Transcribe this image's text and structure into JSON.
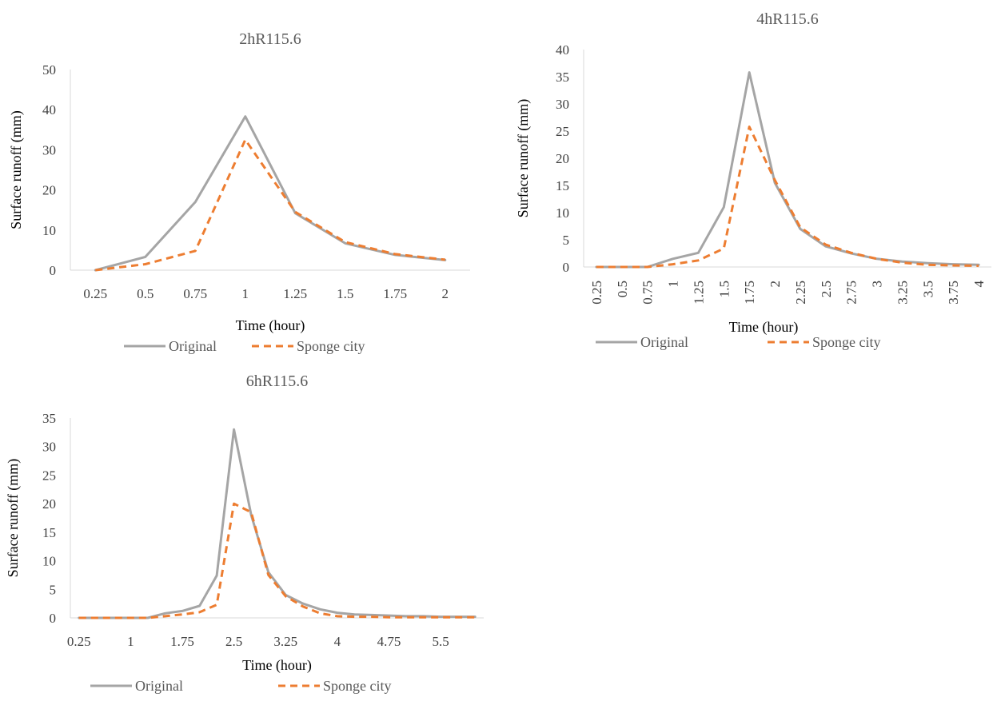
{
  "colors": {
    "original": "#A5A5A5",
    "sponge": "#ED7D31",
    "axis": "#D9D9D9",
    "text": "#595959"
  },
  "chart_data": [
    {
      "type": "line",
      "title": "2hR115.6",
      "xlabel": "Time (hour)",
      "ylabel": "Surface runoff (mm)",
      "categories": [
        "0.25",
        "0.5",
        "0.75",
        "1",
        "1.25",
        "1.5",
        "1.75",
        "2"
      ],
      "ylim": [
        0,
        50
      ],
      "yticks": [
        0,
        10,
        20,
        30,
        40,
        50
      ],
      "series": [
        {
          "name": "Original",
          "values": [
            0,
            3.3,
            17,
            38.3,
            14.2,
            6.7,
            3.8,
            2.5
          ]
        },
        {
          "name": "Sponge city",
          "values": [
            0,
            1.5,
            4.8,
            32.5,
            14.5,
            7,
            4,
            2.6
          ]
        }
      ],
      "legend": "bottom"
    },
    {
      "type": "line",
      "title": "4hR115.6",
      "xlabel": "Time (hour)",
      "ylabel": "Surface runoff (mm)",
      "categories": [
        "0.25",
        "0.5",
        "0.75",
        "1",
        "1.25",
        "1.5",
        "1.75",
        "2",
        "2.25",
        "2.5",
        "2.75",
        "3",
        "3.25",
        "3.5",
        "3.75",
        "4"
      ],
      "ylim": [
        0,
        40
      ],
      "yticks": [
        0,
        5,
        10,
        15,
        20,
        25,
        30,
        35,
        40
      ],
      "series": [
        {
          "name": "Original",
          "values": [
            0,
            0,
            0,
            1.5,
            2.6,
            11,
            35.8,
            15.5,
            7,
            3.8,
            2.5,
            1.5,
            1,
            0.7,
            0.5,
            0.4
          ]
        },
        {
          "name": "Sponge city",
          "values": [
            0,
            0,
            0,
            0.5,
            1.2,
            3.4,
            25.8,
            16,
            7.3,
            4.1,
            2.6,
            1.5,
            0.8,
            0.4,
            0.3,
            0.2
          ]
        }
      ],
      "legend": "bottom"
    },
    {
      "type": "line",
      "title": "6hR115.6",
      "xlabel": "Time (hour)",
      "ylabel": "Surface runoff (mm)",
      "categories": [
        "0.25",
        "0.5",
        "0.75",
        "1",
        "1.25",
        "1.5",
        "1.75",
        "2",
        "2.25",
        "2.5",
        "2.75",
        "3",
        "3.25",
        "3.5",
        "3.75",
        "4",
        "4.25",
        "4.5",
        "4.75",
        "5",
        "5.25",
        "5.5",
        "5.75",
        "6"
      ],
      "tick_labels_shown": [
        "0.25",
        "1",
        "1.75",
        "2.5",
        "3.25",
        "4",
        "4.75",
        "5.5"
      ],
      "ylim": [
        0,
        35
      ],
      "yticks": [
        0,
        5,
        10,
        15,
        20,
        25,
        30,
        35
      ],
      "series": [
        {
          "name": "Original",
          "values": [
            0,
            0,
            0,
            0,
            0,
            0.8,
            1.2,
            2.1,
            7.4,
            33,
            18,
            8,
            4,
            2.5,
            1.5,
            0.9,
            0.6,
            0.5,
            0.4,
            0.3,
            0.3,
            0.2,
            0.2,
            0.2
          ]
        },
        {
          "name": "Sponge city",
          "values": [
            0,
            0,
            0,
            0,
            0,
            0.3,
            0.6,
            1,
            2.3,
            20,
            18.5,
            7.5,
            3.8,
            2,
            0.8,
            0.3,
            0.2,
            0.2,
            0.1,
            0.1,
            0.1,
            0.1,
            0.1,
            0.1
          ]
        }
      ],
      "legend": "bottom"
    }
  ]
}
